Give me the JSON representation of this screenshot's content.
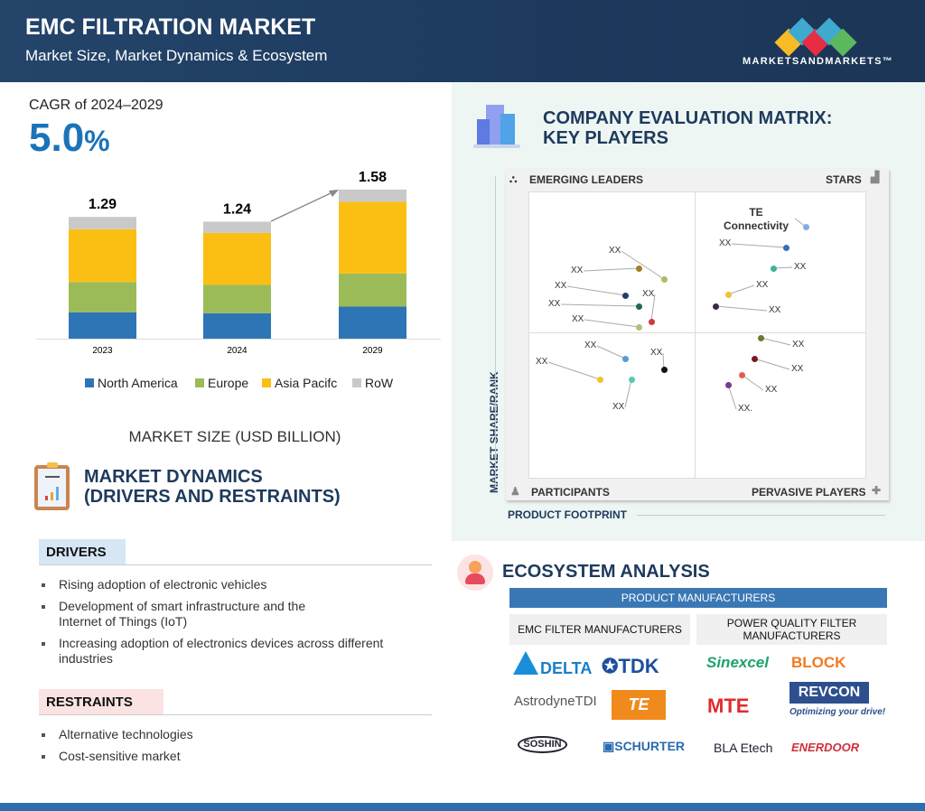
{
  "header": {
    "title": "EMC FILTRATION MARKET",
    "subtitle": "Market Size, Market Dynamics & Ecosystem",
    "brand": "MARKETSANDMARKETS™"
  },
  "cagr": {
    "label": "CAGR of 2024–2029",
    "value": "5.0",
    "unit": "%"
  },
  "chart_data": {
    "type": "bar",
    "stacked": true,
    "categories": [
      "2023",
      "2024",
      "2029"
    ],
    "totals": [
      "1.29",
      "1.24",
      "1.58"
    ],
    "series": [
      {
        "name": "North America",
        "color": "#2e75b6",
        "values": [
          0.28,
          0.27,
          0.34
        ]
      },
      {
        "name": "Europe",
        "color": "#9bbb59",
        "values": [
          0.32,
          0.3,
          0.35
        ]
      },
      {
        "name": "Asia Pacifc",
        "color": "#fbbf14",
        "values": [
          0.56,
          0.55,
          0.76
        ]
      },
      {
        "name": "RoW",
        "color": "#c9c9c9",
        "values": [
          0.13,
          0.12,
          0.13
        ]
      }
    ],
    "legend": "bottom",
    "ylim": [
      0,
      1.7
    ],
    "grid": false,
    "title": "MARKET SIZE (USD BILLION)"
  },
  "dynamics": {
    "title_line1": "MARKET DYNAMICS",
    "title_line2": "(DRIVERS AND RESTRAINTS)",
    "drivers_label": "DRIVERS",
    "drivers": [
      "Rising adoption of electronic vehicles",
      "Development of smart infrastructure and the Internet of Things (IoT)",
      "Increasing adoption of electronics devices across different industries"
    ],
    "restraints_label": "RESTRAINTS",
    "restraints": [
      "Alternative technologies",
      "Cost-sensitive market"
    ]
  },
  "matrix": {
    "title_line1": "COMPANY EVALUATION MATRIX:",
    "title_line2": "KEY PLAYERS",
    "quadrants": {
      "tl": "EMERGING LEADERS",
      "tr": "STARS",
      "bl": "PARTICIPANTS",
      "br": "PERVASIVE PLAYERS"
    },
    "y_axis": "MARKET SHARE/RANK",
    "x_axis": "PRODUCT FOOTPRINT",
    "players": [
      "TE Connectivity",
      "XX",
      "XX",
      "XX",
      "XX",
      "XX",
      "XX",
      "XX",
      "XX",
      "XX",
      "XX",
      "XX",
      "XX",
      "XX",
      "XX",
      "XX",
      "XX",
      "XX",
      "XX."
    ]
  },
  "ecosystem": {
    "title": "ECOSYSTEM ANALYSIS",
    "bar": "PRODUCT MANUFACTURERS",
    "emc_label": "EMC FILTER MANUFACTURERS",
    "pq_label": "POWER QUALITY FILTER MANUFACTURERS",
    "emc_logos": [
      "DELTA",
      "TDK",
      "AstrodyneTDI",
      "TE",
      "SOSHIN",
      "SCHURTER"
    ],
    "pq_logos": [
      "Sinexcel",
      "BLOCK",
      "MTE",
      "REVCON",
      "Optimizing your drive!",
      "BLA Etech",
      "ENERDOOR"
    ]
  }
}
